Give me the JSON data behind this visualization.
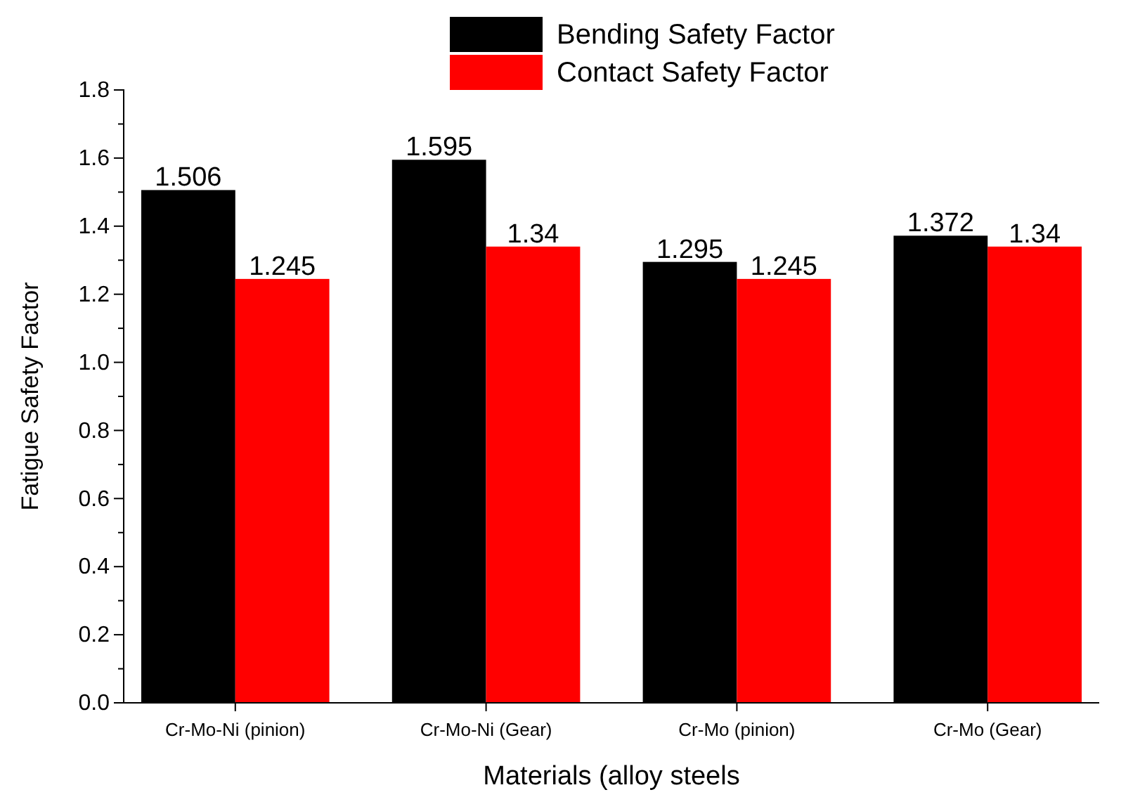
{
  "chart_data": {
    "type": "bar",
    "xlabel": "Materials (alloy steels",
    "ylabel": "Fatigue Safety Factor",
    "categories": [
      "Cr-Mo-Ni (pinion)",
      "Cr-Mo-Ni (Gear)",
      "Cr-Mo (pinion)",
      "Cr-Mo (Gear)"
    ],
    "series": [
      {
        "name": "Bending Safety Factor",
        "color": "#000000",
        "values": [
          1.506,
          1.595,
          1.295,
          1.372
        ]
      },
      {
        "name": "Contact Safety Factor",
        "color": "#ff0000",
        "values": [
          1.245,
          1.34,
          1.245,
          1.34
        ]
      }
    ],
    "ylim": [
      0,
      1.8
    ],
    "yticks": [
      {
        "value": 0,
        "label": "0.0"
      },
      {
        "value": 0.2,
        "label": "0.2"
      },
      {
        "value": 0.4,
        "label": "0.4"
      },
      {
        "value": 0.6,
        "label": "0.6"
      },
      {
        "value": 0.8,
        "label": "0.8"
      },
      {
        "value": 1,
        "label": "1.0"
      },
      {
        "value": 1.2,
        "label": "1.2"
      },
      {
        "value": 1.4,
        "label": "1.4"
      },
      {
        "value": 1.6,
        "label": "1.6"
      },
      {
        "value": 1.8,
        "label": "1.8"
      }
    ],
    "data_labels": true,
    "legend": "top",
    "grid": false
  }
}
